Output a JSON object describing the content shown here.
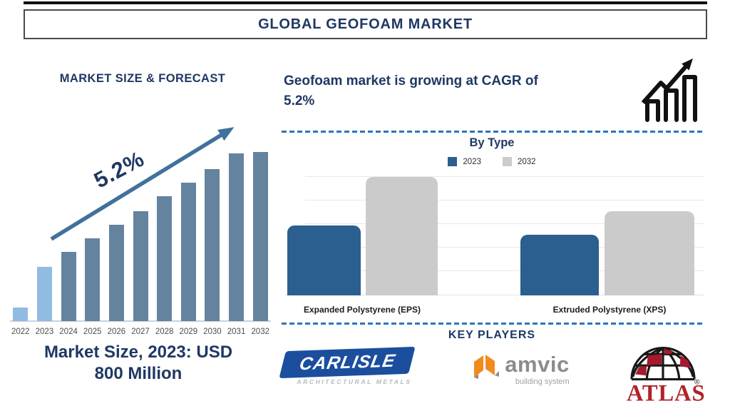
{
  "page_title": "GLOBAL GEOFOAM MARKET",
  "left_panel": {
    "heading": "MARKET SIZE & FORECAST",
    "growth_annotation": "5.2%",
    "caption_line1": "Market Size, 2023: USD",
    "caption_line2": "800 Million"
  },
  "right_panel": {
    "growth_line1": "Geofoam market is growing at CAGR of",
    "growth_line2": "5.2%",
    "growth_icon": "bar-chart-rising-arrow-icon",
    "section_by_type_heading": "By Type",
    "section_key_players_heading": "KEY PLAYERS",
    "key_players": [
      {
        "name": "Carlisle",
        "wordmark": "CARLISLE",
        "tagline": "ARCHITECTURAL METALS"
      },
      {
        "name": "Amvic",
        "wordmark": "amvic",
        "tagline": "building system"
      },
      {
        "name": "Atlas",
        "wordmark": "ATLAS",
        "registered_mark": "®"
      }
    ]
  },
  "chart_data": [
    {
      "type": "bar",
      "title": "MARKET SIZE & FORECAST",
      "categories": [
        "2022",
        "2023",
        "2024",
        "2025",
        "2026",
        "2027",
        "2028",
        "2029",
        "2030",
        "2031",
        "2032"
      ],
      "values_relative_pct_of_max": [
        8,
        32,
        41,
        49,
        57,
        65,
        74,
        82,
        90,
        99,
        100
      ],
      "values_note": "No numeric axis shown; heights are illustrative. 2023 bar is labeled USD 800 Million in caption.",
      "annotation": "5.2% CAGR rising arrow",
      "highlighted_categories": [
        "2022",
        "2023"
      ],
      "xlabel": "",
      "ylabel": "",
      "grid": false,
      "legend": "none"
    },
    {
      "type": "bar",
      "title": "By Type",
      "categories": [
        "Expanded Polystyrene (EPS)",
        "Extruded Polystyrene (XPS)"
      ],
      "series": [
        {
          "name": "2023",
          "values_relative_pct_of_max": [
            59,
            51
          ]
        },
        {
          "name": "2032",
          "values_relative_pct_of_max": [
            100,
            71
          ]
        }
      ],
      "values_note": "No numeric axis shown; heights relative to tallest bar (EPS 2032).",
      "grid": true,
      "legend_position": "top"
    }
  ],
  "colors": {
    "navy_text": "#1F3864",
    "arrow_blue": "#41719C",
    "bar_light_blue": "#92BBE3",
    "bar_steel_blue": "#64839F",
    "bar_blue_2023": "#2A5F8F",
    "bar_gray_2032": "#CBCBCB",
    "dashed_line_blue": "#2E75B6",
    "carlisle_blue": "#1B4F9E",
    "amvic_orange": "#F08C1E",
    "amvic_gray": "#8A8C8F",
    "atlas_red": "#B2222A",
    "icon_black": "#111111"
  }
}
